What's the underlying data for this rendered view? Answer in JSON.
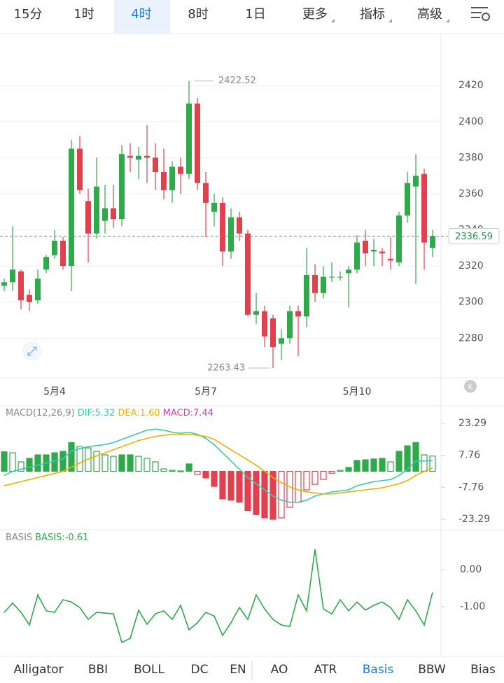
{
  "tabs": {
    "items": [
      "15分",
      "1时",
      "4时",
      "8时",
      "1日",
      "更多",
      "指标",
      "高级"
    ],
    "active": 2
  },
  "scroll_button": "K",
  "chart_data": [
    {
      "type": "candlestick",
      "up_color": "#2eaa4a",
      "down_color": "#e2404f",
      "grid": true,
      "last_price_line": true,
      "categories": [
        null,
        null,
        null,
        null,
        null,
        null,
        "5月4",
        null,
        null,
        null,
        null,
        null,
        null,
        null,
        null,
        null,
        null,
        null,
        null,
        null,
        null,
        null,
        null,
        null,
        "5月7",
        null,
        null,
        null,
        null,
        null,
        null,
        null,
        null,
        null,
        null,
        null,
        null,
        null,
        null,
        null,
        null,
        null,
        "5月10",
        null,
        null,
        null,
        null,
        null,
        null,
        null,
        null,
        null
      ],
      "open": [
        2309,
        2311,
        2317,
        2304,
        2301,
        2318,
        2326,
        2334,
        2320,
        2385,
        2356,
        2338,
        2345,
        2352,
        2346,
        2381,
        2379,
        2381,
        2380,
        2372,
        2362,
        2375,
        2371,
        2410,
        2366,
        2350,
        2355,
        2328,
        2347,
        2338,
        2293,
        2295,
        2291,
        2277,
        2280,
        2295,
        2292,
        2315,
        2305,
        2314,
        2314,
        2316,
        2318,
        2334,
        2328,
        2328,
        2324,
        2322,
        2348,
        2364,
        2371,
        2330
      ],
      "high": [
        2313,
        2342,
        2318,
        2307,
        2318,
        2326,
        2340,
        2336,
        2390,
        2392,
        2363,
        2380,
        2365,
        2365,
        2387,
        2388,
        2386,
        2398,
        2388,
        2385,
        2378,
        2380,
        2422.52,
        2413,
        2372,
        2360,
        2358,
        2352,
        2350,
        2340,
        2305,
        2298,
        2293,
        2285,
        2298,
        2298,
        2330,
        2321,
        2320,
        2322,
        2317,
        2320,
        2337,
        2340,
        2335,
        2330,
        2336,
        2350,
        2372,
        2382,
        2374,
        2340
      ],
      "low": [
        2306,
        2306,
        2296,
        2295,
        2299,
        2316,
        2324,
        2318,
        2306,
        2360,
        2322,
        2335,
        2338,
        2341,
        2342,
        2372,
        2368,
        2366,
        2362,
        2357,
        2355,
        2360,
        2368,
        2362,
        2336,
        2342,
        2320,
        2324,
        2334,
        2292,
        2288,
        2275,
        2263.43,
        2268,
        2277,
        2270,
        2286,
        2300,
        2302,
        2311,
        2312,
        2297,
        2316,
        2320,
        2320,
        2320,
        2318,
        2320,
        2344,
        2310,
        2318,
        2325
      ],
      "close": [
        2311,
        2318,
        2301,
        2300,
        2313,
        2325,
        2334,
        2320,
        2385,
        2362,
        2338,
        2364,
        2352,
        2346,
        2382,
        2380,
        2381,
        2380,
        2372,
        2362,
        2375,
        2371,
        2410,
        2366,
        2355,
        2355,
        2328,
        2347,
        2338,
        2293,
        2295,
        2281,
        2275,
        2280,
        2295,
        2292,
        2315,
        2305,
        2314,
        2314,
        2314,
        2318,
        2333,
        2327,
        2329,
        2327,
        2323,
        2348,
        2366,
        2370,
        2333,
        2336.59
      ],
      "ylim": [
        2258,
        2448
      ],
      "yticks": [
        2280,
        2300,
        2320,
        2340,
        2360,
        2380,
        2400,
        2420
      ]
    },
    {
      "type": "macd",
      "title": "MACD(12,26,9)",
      "ylim": [
        -26,
        25
      ],
      "yticks": [
        23.29,
        7.76,
        -7.76,
        -23.29
      ],
      "up_color": "#2eaa4a",
      "down_color": "#e2404f",
      "series": [
        {
          "name": "DIF:",
          "color": "#3cc8b4",
          "last_value_label": "5.32",
          "values": [
            -2,
            0,
            1,
            2,
            3,
            4,
            5,
            6,
            10,
            11,
            12,
            12.5,
            13,
            14,
            15.5,
            17,
            18.5,
            20,
            20.5,
            20,
            19,
            18.5,
            19,
            18,
            16,
            13,
            9,
            5,
            1,
            -3,
            -6,
            -9,
            -12,
            -14,
            -15,
            -15,
            -14,
            -12,
            -11,
            -10,
            -9.5,
            -9,
            -7,
            -6,
            -5,
            -4.5,
            -4,
            -2,
            1,
            5,
            5,
            5.32
          ]
        },
        {
          "name": "DEA:",
          "color": "#f0b000",
          "last_value_label": "1.60",
          "values": [
            -7,
            -6,
            -5,
            -4,
            -3,
            -2,
            -1,
            0,
            2,
            4,
            6,
            7.5,
            9,
            10.5,
            12,
            13.5,
            15,
            16,
            17,
            17.5,
            18,
            18,
            18,
            17.5,
            17,
            15.5,
            13,
            10.5,
            8,
            5.5,
            3,
            0,
            -3,
            -5.5,
            -7.5,
            -9,
            -10,
            -10.5,
            -11,
            -11,
            -10.5,
            -10,
            -9.5,
            -9,
            -8.5,
            -8,
            -7,
            -6,
            -4.5,
            -2,
            0,
            1.6
          ]
        },
        {
          "name": "MACD:",
          "color": "#d63ca8",
          "style": "histogram",
          "last_value_label": "7.44",
          "values": [
            9.5,
            9,
            4.6,
            6.3,
            8,
            8,
            9,
            9.7,
            14,
            12,
            11.4,
            9.7,
            8,
            7.3,
            8,
            8,
            7.3,
            6.3,
            4.6,
            1.2,
            0.5,
            0.2,
            3.6,
            -1.5,
            -3.2,
            -7.3,
            -13.4,
            -14,
            -15,
            -19,
            -21,
            -22.6,
            -23.3,
            -22.6,
            -17.5,
            -15,
            -9,
            -6.3,
            -3.9,
            -0.9,
            0.5,
            1.9,
            5.3,
            5.6,
            6,
            6.3,
            4.6,
            9.7,
            12.4,
            14,
            8,
            7.44
          ]
        }
      ]
    },
    {
      "type": "line",
      "title": "BASIS",
      "ylim": [
        -2.28,
        0.83
      ],
      "yticks": [
        {
          "value": 0,
          "label": "0.00"
        },
        {
          "value": -1,
          "label": "-1.00"
        }
      ],
      "series": [
        {
          "name": "BASIS:",
          "color": "#2eaa4a",
          "last_value_label": "-0.61",
          "values": [
            -1.15,
            -0.9,
            -1.15,
            -1.49,
            -0.68,
            -1.11,
            -1.15,
            -0.81,
            -0.87,
            -1.02,
            -1.34,
            -1.15,
            -1.17,
            -1.19,
            -1.96,
            -1.85,
            -1.09,
            -1.47,
            -1.19,
            -1.11,
            -1.34,
            -0.96,
            -1.62,
            -1.43,
            -1.15,
            -1.25,
            -1.77,
            -1.43,
            -1.02,
            -1.34,
            -0.68,
            -1.06,
            -1.34,
            -1.49,
            -1.53,
            -0.68,
            -1.11,
            0.55,
            -1.06,
            -1.19,
            -0.81,
            -1.11,
            -0.87,
            -1.09,
            -0.96,
            -0.87,
            -1.02,
            -1.34,
            -0.81,
            -1.11,
            -1.49,
            -0.61
          ]
        }
      ]
    }
  ],
  "indicator_tabs": {
    "items": [
      "Alligator",
      "BBI",
      "BOLL",
      "DC",
      "EN",
      "AO",
      "ATR",
      "Basis",
      "BBW",
      "Bias"
    ],
    "active": 7
  }
}
